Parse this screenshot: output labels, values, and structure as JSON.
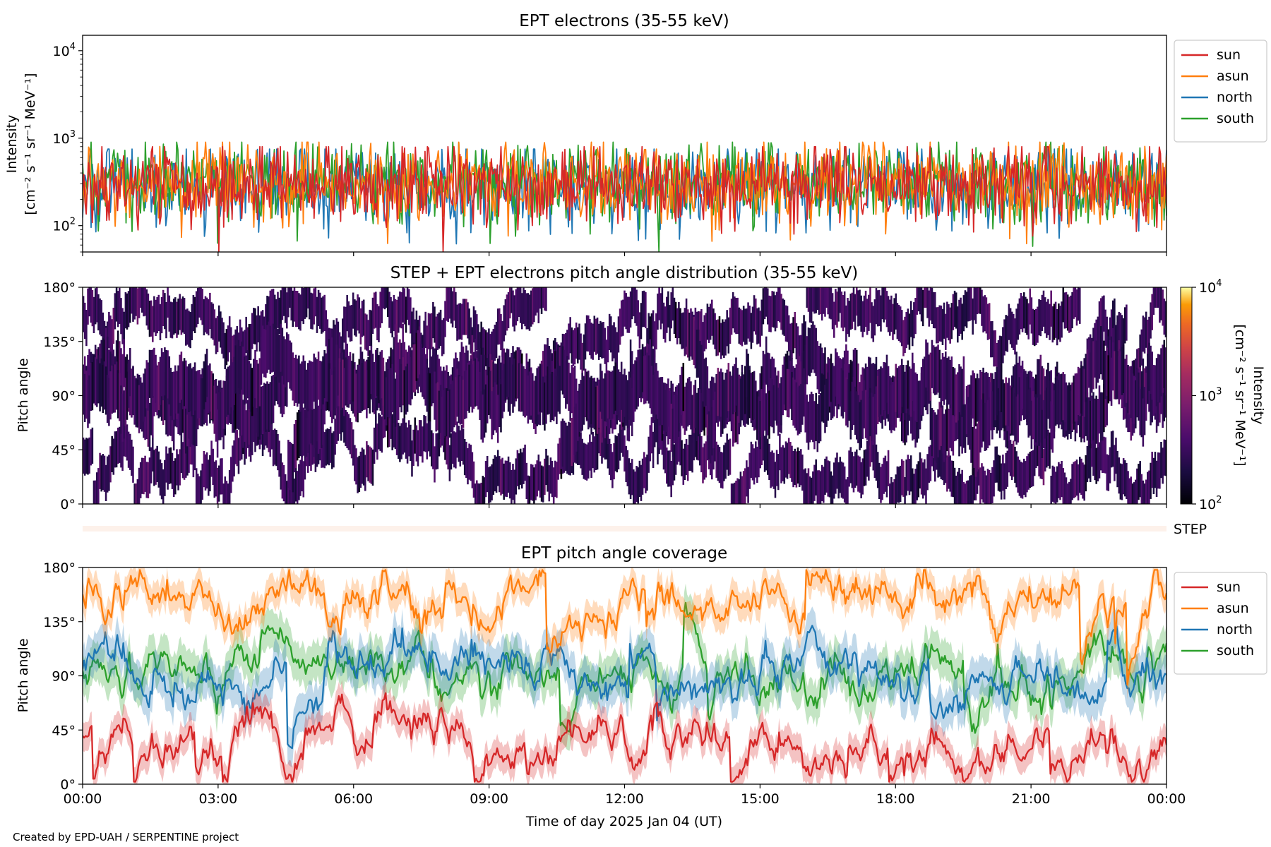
{
  "figure": {
    "credit": "Created by EPD-UAH / SERPENTINE project",
    "xlabel": "Time of day 2025 Jan 04 (UT)",
    "xticks": [
      "00:00",
      "03:00",
      "06:00",
      "09:00",
      "12:00",
      "15:00",
      "18:00",
      "21:00",
      "00:00"
    ]
  },
  "colors": {
    "sun": "#d62728",
    "asun": "#ff7f0e",
    "north": "#1f77b4",
    "south": "#2ca02c",
    "step_strip": "#fdf1ea",
    "colormap": "inferno"
  },
  "chart_data": [
    {
      "type": "line",
      "title": "EPT electrons (35-55 keV)",
      "ylabel_line1": "Intensity",
      "ylabel_line2": "[cm⁻² s⁻¹ sr⁻¹ MeV⁻¹]",
      "yscale": "log",
      "ylim": [
        50,
        15000
      ],
      "xlim_hours": [
        0,
        24
      ],
      "yticks": [
        {
          "base": "10",
          "exp": "2",
          "value": 100
        },
        {
          "base": "10",
          "exp": "3",
          "value": 1000
        },
        {
          "base": "10",
          "exp": "4",
          "value": 10000
        }
      ],
      "legend_position": "outside-right-top",
      "series": [
        {
          "name": "sun",
          "typical_range": [
            100,
            800
          ],
          "median": 300
        },
        {
          "name": "asun",
          "typical_range": [
            100,
            900
          ],
          "median": 300
        },
        {
          "name": "north",
          "typical_range": [
            70,
            750
          ],
          "median": 280
        },
        {
          "name": "south",
          "typical_range": [
            80,
            900
          ],
          "median": 320
        }
      ]
    },
    {
      "type": "heatmap",
      "title": "STEP + EPT electrons pitch angle distribution (35-55 keV)",
      "ylabel": "Pitch angle",
      "ylim": [
        0,
        180
      ],
      "yticks": [
        "0°",
        "45°",
        "90°",
        "135°",
        "180°"
      ],
      "xlim_hours": [
        0,
        24
      ],
      "colorbar": {
        "label_line1": "Intensity",
        "label_line2": "[cm⁻² s⁻¹ sr⁻¹ MeV⁻¹]",
        "scale": "log",
        "range": [
          100,
          10000
        ],
        "ticks": [
          {
            "base": "10",
            "exp": "2"
          },
          {
            "base": "10",
            "exp": "3"
          },
          {
            "base": "10",
            "exp": "4"
          }
        ]
      },
      "typical_value": 300
    },
    {
      "type": "strip",
      "label": "STEP"
    },
    {
      "type": "line",
      "title": "EPT pitch angle coverage",
      "ylabel": "Pitch angle",
      "ylim": [
        0,
        180
      ],
      "yticks": [
        "0°",
        "45°",
        "90°",
        "135°",
        "180°"
      ],
      "xlim_hours": [
        0,
        24
      ],
      "legend_position": "outside-right-top",
      "series": [
        {
          "name": "sun",
          "mean_deg": 30,
          "spread_deg": 15
        },
        {
          "name": "asun",
          "mean_deg": 150,
          "spread_deg": 15
        },
        {
          "name": "north",
          "mean_deg": 90,
          "spread_deg": 20
        },
        {
          "name": "south",
          "mean_deg": 90,
          "spread_deg": 20
        }
      ]
    }
  ]
}
